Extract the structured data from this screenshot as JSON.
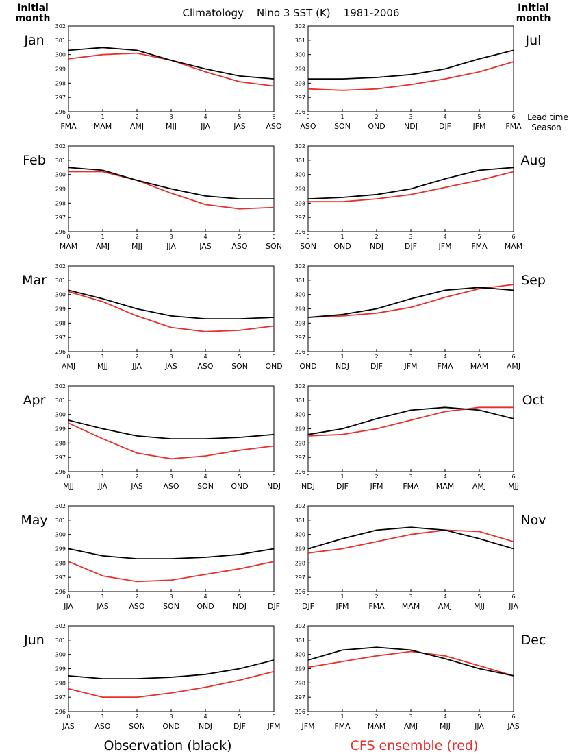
{
  "header": {
    "title": "Climatology    Nino 3 SST (K)    1981-2006",
    "left_label_line1": "Initial",
    "left_label_line2": "month",
    "right_label_line1": "Initial",
    "right_label_line2": "month",
    "lead_time_label": "Lead time",
    "season_label": "Season"
  },
  "footer": {
    "observation_label": "Observation (black)",
    "cfs_label": "CFS ensemble (red)"
  },
  "colors": {
    "observation": "#000000",
    "cfs": "#e8302a"
  },
  "chart_data": [
    {
      "type": "line",
      "month": "Jan",
      "x": [
        0,
        1,
        2,
        3,
        4,
        5,
        6
      ],
      "xlabels": [
        "FMA",
        "MAM",
        "AMJ",
        "MJJ",
        "JJA",
        "JAS",
        "ASO"
      ],
      "ylim": [
        296,
        302
      ],
      "yticks": [
        296,
        297,
        298,
        299,
        300,
        301,
        302
      ],
      "series": [
        {
          "name": "Observation",
          "values": [
            300.3,
            300.5,
            300.3,
            299.6,
            299.0,
            298.5,
            298.3
          ]
        },
        {
          "name": "CFS ensemble",
          "values": [
            299.7,
            300.0,
            300.1,
            299.6,
            298.8,
            298.1,
            297.8
          ]
        }
      ]
    },
    {
      "type": "line",
      "month": "Jul",
      "x": [
        0,
        1,
        2,
        3,
        4,
        5,
        6
      ],
      "xlabels": [
        "ASO",
        "SON",
        "OND",
        "NDJ",
        "DJF",
        "JFM",
        "FMA"
      ],
      "ylim": [
        296,
        302
      ],
      "yticks": [
        296,
        297,
        298,
        299,
        300,
        301,
        302
      ],
      "series": [
        {
          "name": "Observation",
          "values": [
            298.3,
            298.3,
            298.4,
            298.6,
            299.0,
            299.7,
            300.3
          ]
        },
        {
          "name": "CFS ensemble",
          "values": [
            297.6,
            297.5,
            297.6,
            297.9,
            298.3,
            298.8,
            299.5
          ]
        }
      ]
    },
    {
      "type": "line",
      "month": "Feb",
      "x": [
        0,
        1,
        2,
        3,
        4,
        5,
        6
      ],
      "xlabels": [
        "MAM",
        "AMJ",
        "MJJ",
        "JJA",
        "JAS",
        "ASO",
        "SON"
      ],
      "ylim": [
        296,
        302
      ],
      "yticks": [
        296,
        297,
        298,
        299,
        300,
        301,
        302
      ],
      "series": [
        {
          "name": "Observation",
          "values": [
            300.5,
            300.3,
            299.6,
            299.0,
            298.5,
            298.3,
            298.3
          ]
        },
        {
          "name": "CFS ensemble",
          "values": [
            300.2,
            300.2,
            299.6,
            298.7,
            297.9,
            297.6,
            297.7
          ]
        }
      ]
    },
    {
      "type": "line",
      "month": "Aug",
      "x": [
        0,
        1,
        2,
        3,
        4,
        5,
        6
      ],
      "xlabels": [
        "SON",
        "OND",
        "NDJ",
        "DJF",
        "JFM",
        "FMA",
        "MAM"
      ],
      "ylim": [
        296,
        302
      ],
      "yticks": [
        296,
        297,
        298,
        299,
        300,
        301,
        302
      ],
      "series": [
        {
          "name": "Observation",
          "values": [
            298.3,
            298.4,
            298.6,
            299.0,
            299.7,
            300.3,
            300.5
          ]
        },
        {
          "name": "CFS ensemble",
          "values": [
            298.1,
            298.1,
            298.3,
            298.6,
            299.1,
            299.6,
            300.2
          ]
        }
      ]
    },
    {
      "type": "line",
      "month": "Mar",
      "x": [
        0,
        1,
        2,
        3,
        4,
        5,
        6
      ],
      "xlabels": [
        "AMJ",
        "MJJ",
        "JJA",
        "JAS",
        "ASO",
        "SON",
        "OND"
      ],
      "ylim": [
        296,
        302
      ],
      "yticks": [
        296,
        297,
        298,
        299,
        300,
        301,
        302
      ],
      "series": [
        {
          "name": "Observation",
          "values": [
            300.3,
            299.7,
            299.0,
            298.5,
            298.3,
            298.3,
            298.4
          ]
        },
        {
          "name": "CFS ensemble",
          "values": [
            300.2,
            299.5,
            298.5,
            297.7,
            297.4,
            297.5,
            297.8
          ]
        }
      ]
    },
    {
      "type": "line",
      "month": "Sep",
      "x": [
        0,
        1,
        2,
        3,
        4,
        5,
        6
      ],
      "xlabels": [
        "OND",
        "NDJ",
        "DJF",
        "JFM",
        "FMA",
        "MAM",
        "AMJ"
      ],
      "ylim": [
        296,
        302
      ],
      "yticks": [
        296,
        297,
        298,
        299,
        300,
        301,
        302
      ],
      "series": [
        {
          "name": "Observation",
          "values": [
            298.4,
            298.6,
            299.0,
            299.7,
            300.3,
            300.5,
            300.3
          ]
        },
        {
          "name": "CFS ensemble",
          "values": [
            298.4,
            298.5,
            298.7,
            299.1,
            299.8,
            300.4,
            300.7
          ]
        }
      ]
    },
    {
      "type": "line",
      "month": "Apr",
      "x": [
        0,
        1,
        2,
        3,
        4,
        5,
        6
      ],
      "xlabels": [
        "MJJ",
        "JJA",
        "JAS",
        "ASO",
        "SON",
        "OND",
        "NDJ"
      ],
      "ylim": [
        296,
        302
      ],
      "yticks": [
        296,
        297,
        298,
        299,
        300,
        301,
        302
      ],
      "series": [
        {
          "name": "Observation",
          "values": [
            299.6,
            299.0,
            298.5,
            298.3,
            298.3,
            298.4,
            298.6
          ]
        },
        {
          "name": "CFS ensemble",
          "values": [
            299.4,
            298.3,
            297.3,
            296.9,
            297.1,
            297.5,
            297.8
          ]
        }
      ]
    },
    {
      "type": "line",
      "month": "Oct",
      "x": [
        0,
        1,
        2,
        3,
        4,
        5,
        6
      ],
      "xlabels": [
        "NDJ",
        "DJF",
        "JFM",
        "FMA",
        "MAM",
        "AMJ",
        "MJJ"
      ],
      "ylim": [
        296,
        302
      ],
      "yticks": [
        296,
        297,
        298,
        299,
        300,
        301,
        302
      ],
      "series": [
        {
          "name": "Observation",
          "values": [
            298.6,
            299.0,
            299.7,
            300.3,
            300.5,
            300.3,
            299.7
          ]
        },
        {
          "name": "CFS ensemble",
          "values": [
            298.5,
            298.6,
            299.0,
            299.6,
            300.2,
            300.5,
            300.5
          ]
        }
      ]
    },
    {
      "type": "line",
      "month": "May",
      "x": [
        0,
        1,
        2,
        3,
        4,
        5,
        6
      ],
      "xlabels": [
        "JJA",
        "JAS",
        "ASO",
        "SON",
        "OND",
        "NDJ",
        "DJF"
      ],
      "ylim": [
        296,
        302
      ],
      "yticks": [
        296,
        297,
        298,
        299,
        300,
        301,
        302
      ],
      "series": [
        {
          "name": "Observation",
          "values": [
            299.0,
            298.5,
            298.3,
            298.3,
            298.4,
            298.6,
            299.0
          ]
        },
        {
          "name": "CFS ensemble",
          "values": [
            298.1,
            297.1,
            296.7,
            296.8,
            297.2,
            297.6,
            298.1
          ]
        }
      ]
    },
    {
      "type": "line",
      "month": "Nov",
      "x": [
        0,
        1,
        2,
        3,
        4,
        5,
        6
      ],
      "xlabels": [
        "DJF",
        "JFM",
        "FMA",
        "MAM",
        "AMJ",
        "MJJ",
        "JJA"
      ],
      "ylim": [
        296,
        302
      ],
      "yticks": [
        296,
        297,
        298,
        299,
        300,
        301,
        302
      ],
      "series": [
        {
          "name": "Observation",
          "values": [
            299.0,
            299.7,
            300.3,
            300.5,
            300.3,
            299.7,
            299.0
          ]
        },
        {
          "name": "CFS ensemble",
          "values": [
            298.7,
            299.0,
            299.5,
            300.0,
            300.3,
            300.2,
            299.5
          ]
        }
      ]
    },
    {
      "type": "line",
      "month": "Jun",
      "x": [
        0,
        1,
        2,
        3,
        4,
        5,
        6
      ],
      "xlabels": [
        "JAS",
        "ASO",
        "SON",
        "OND",
        "NDJ",
        "DJF",
        "JFM"
      ],
      "ylim": [
        296,
        302
      ],
      "yticks": [
        296,
        297,
        298,
        299,
        300,
        301,
        302
      ],
      "series": [
        {
          "name": "Observation",
          "values": [
            298.5,
            298.3,
            298.3,
            298.4,
            298.6,
            299.0,
            299.6
          ]
        },
        {
          "name": "CFS ensemble",
          "values": [
            297.6,
            297.0,
            297.0,
            297.3,
            297.7,
            298.2,
            298.8
          ]
        }
      ]
    },
    {
      "type": "line",
      "month": "Dec",
      "x": [
        0,
        1,
        2,
        3,
        4,
        5,
        6
      ],
      "xlabels": [
        "JFM",
        "FMA",
        "MAM",
        "AMJ",
        "MJJ",
        "JJA",
        "JAS"
      ],
      "ylim": [
        296,
        302
      ],
      "yticks": [
        296,
        297,
        298,
        299,
        300,
        301,
        302
      ],
      "series": [
        {
          "name": "Observation",
          "values": [
            299.6,
            300.3,
            300.5,
            300.3,
            299.7,
            299.0,
            298.5
          ]
        },
        {
          "name": "CFS ensemble",
          "values": [
            299.1,
            299.5,
            299.9,
            300.2,
            299.9,
            299.2,
            298.5
          ]
        }
      ]
    }
  ]
}
